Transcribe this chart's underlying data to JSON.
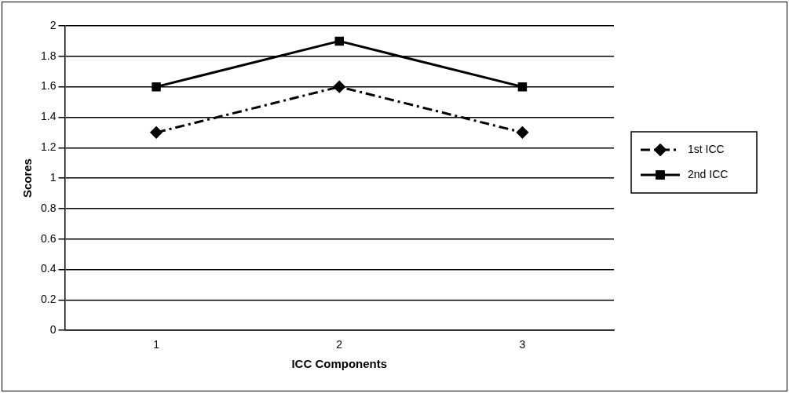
{
  "chart_data": {
    "type": "line",
    "xlabel": "ICC Components",
    "ylabel": "Scores",
    "categories": [
      "1",
      "2",
      "3"
    ],
    "series": [
      {
        "name": "1st ICC",
        "color": "#000000",
        "values": [
          1.3,
          1.6,
          1.3
        ],
        "marker": "diamond",
        "line_style": "dashed"
      },
      {
        "name": "2nd ICC",
        "color": "#000000",
        "values": [
          1.6,
          1.9,
          1.6
        ],
        "marker": "square",
        "line_style": "solid"
      }
    ],
    "ylim": [
      0,
      2
    ],
    "yticks": [
      0,
      0.2,
      0.4,
      0.6,
      0.8,
      1,
      1.2,
      1.4,
      1.6,
      1.8,
      2
    ],
    "grid": "y",
    "legend": "right"
  }
}
